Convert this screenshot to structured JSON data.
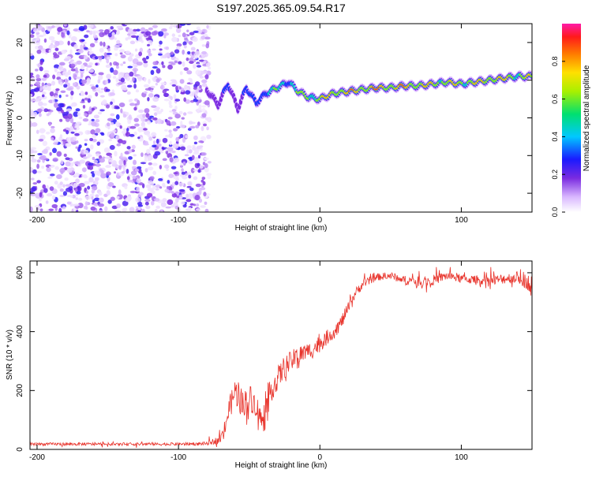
{
  "title": "S197.2025.365.09.54.R17",
  "chart_data": [
    {
      "type": "heatmap",
      "xlabel": "Height of straight line (km)",
      "ylabel": "Frequency (Hz)",
      "xlim": [
        -205,
        150
      ],
      "ylim": [
        -25,
        25
      ],
      "xticks": [
        -200,
        -100,
        0,
        100
      ],
      "xtick_labels": [
        "-200",
        "-100",
        "0",
        "100"
      ],
      "yticks": [
        -20,
        -10,
        0,
        10,
        20
      ],
      "ytick_labels": [
        "-20",
        "-10",
        "0",
        "10",
        "20"
      ],
      "noise_region_x": [
        -205,
        -78
      ],
      "ridge": {
        "x": [
          -80,
          -72,
          -65,
          -58,
          -52,
          -45,
          -38,
          -30,
          -22,
          -15,
          -8,
          0,
          10,
          20,
          30,
          40,
          50,
          60,
          70,
          80,
          90,
          100,
          110,
          120,
          130,
          140,
          150
        ],
        "y": [
          7.5,
          3.5,
          9,
          2.5,
          8,
          4,
          6.5,
          8,
          9.5,
          7,
          5.5,
          5,
          6.5,
          7,
          7.5,
          8,
          8,
          8.5,
          8.5,
          9,
          9.5,
          9,
          9.5,
          10,
          10.5,
          11,
          11
        ],
        "amplitude": [
          0.3,
          0.25,
          0.35,
          0.3,
          0.4,
          0.45,
          0.55,
          0.65,
          0.6,
          0.7,
          0.8,
          0.85,
          0.9,
          0.95,
          0.97,
          0.97,
          0.95,
          0.95,
          0.9,
          0.9,
          0.85,
          0.85,
          0.9,
          0.92,
          0.9,
          0.85,
          0.8
        ]
      },
      "colorbar": {
        "label": "Normalized spectral amplitude",
        "range": [
          0.0,
          1.0
        ],
        "ticks": [
          0.0,
          0.2,
          0.4,
          0.6,
          0.8
        ],
        "tick_labels": [
          "0.0",
          "0.2",
          "0.4",
          "0.6",
          "0.8"
        ]
      }
    },
    {
      "type": "line",
      "xlabel": "Height of straight line (km)",
      "ylabel": "SNR (10 * v/v)",
      "xlim": [
        -205,
        150
      ],
      "ylim": [
        0,
        640
      ],
      "xticks": [
        -200,
        -100,
        0,
        100
      ],
      "xtick_labels": [
        "-200",
        "-100",
        "0",
        "100"
      ],
      "yticks": [
        0,
        200,
        400,
        600
      ],
      "ytick_labels": [
        "0",
        "200",
        "400",
        "600"
      ],
      "series": [
        {
          "name": "SNR",
          "color": "#e8332b",
          "x": [
            -205,
            -150,
            -100,
            -80,
            -70,
            -65,
            -60,
            -55,
            -50,
            -45,
            -40,
            -35,
            -30,
            -25,
            -20,
            -15,
            -10,
            -5,
            0,
            5,
            10,
            15,
            20,
            25,
            30,
            40,
            50,
            60,
            70,
            80,
            90,
            100,
            110,
            120,
            130,
            140,
            150
          ],
          "y": [
            18,
            18,
            18,
            20,
            35,
            120,
            200,
            150,
            180,
            150,
            80,
            200,
            240,
            280,
            300,
            320,
            330,
            340,
            360,
            380,
            400,
            430,
            480,
            530,
            560,
            585,
            590,
            575,
            570,
            575,
            590,
            580,
            575,
            570,
            580,
            585,
            560
          ],
          "noise_amplitude": [
            10,
            10,
            10,
            12,
            30,
            80,
            90,
            90,
            90,
            80,
            80,
            90,
            80,
            80,
            70,
            70,
            60,
            60,
            60,
            50,
            50,
            50,
            40,
            35,
            30,
            25,
            25,
            30,
            35,
            35,
            30,
            30,
            30,
            35,
            35,
            40,
            60
          ]
        }
      ]
    }
  ]
}
